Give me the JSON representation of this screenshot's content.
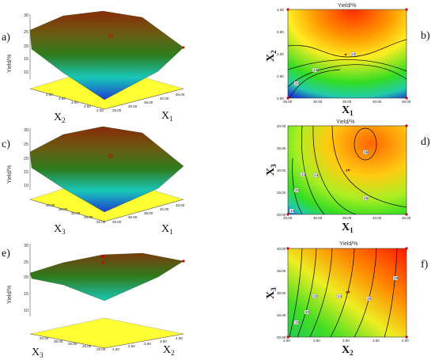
{
  "panels": [
    {
      "label": "a)",
      "kind": "surface",
      "zlabel": "Yield/%",
      "zticks": [
        "30",
        "25",
        "20",
        "15",
        "10"
      ],
      "axis_left": {
        "name": "X",
        "sub": "2",
        "ticks": [
          "4.00",
          "3.50",
          "3.00",
          "2.50",
          "2.00"
        ]
      },
      "axis_right": {
        "name": "X",
        "sub": "1",
        "ticks": [
          "25.00",
          "30.00",
          "35.00",
          "40.00",
          "45.00"
        ]
      }
    },
    {
      "label": "c)",
      "kind": "surface",
      "zlabel": "Yield/%",
      "zticks": [
        "30",
        "25",
        "20",
        "15",
        "10"
      ],
      "axis_left": {
        "name": "X",
        "sub": "3",
        "ticks": [
          "40.00",
          "35.00",
          "30.00",
          "25.00",
          "20.00"
        ]
      },
      "axis_right": {
        "name": "X",
        "sub": "1",
        "ticks": [
          "25.00",
          "30.00",
          "35.00",
          "40.00",
          "45.00"
        ]
      }
    },
    {
      "label": "e)",
      "kind": "surface",
      "zlabel": "Yield/%",
      "zticks": [
        "30",
        "25",
        "20",
        "15",
        "10"
      ],
      "axis_left": {
        "name": "X",
        "sub": "3",
        "ticks": [
          "40.00",
          "35.00",
          "30.00",
          "25.00",
          "20.00"
        ]
      },
      "axis_right": {
        "name": "X",
        "sub": "2",
        "ticks": [
          "2.00",
          "2.50",
          "3.00",
          "3.50",
          "4.00"
        ]
      }
    },
    {
      "label": "b)",
      "kind": "contour",
      "title": "Yield/%",
      "xlabel": {
        "name": "X",
        "sub": "1"
      },
      "ylabel": {
        "name": "X",
        "sub": "2"
      },
      "xticks": [
        "25.00",
        "30.00",
        "35.00",
        "40.00",
        "45.00"
      ],
      "yticks": [
        "2.00",
        "2.50",
        "3.00",
        "3.50",
        "4.00"
      ],
      "contour_labels": [
        "20",
        "22",
        "24"
      ]
    },
    {
      "label": "d)",
      "kind": "contour",
      "title": "Yield/%",
      "xlabel": {
        "name": "X",
        "sub": "1"
      },
      "ylabel": {
        "name": "X",
        "sub": "3"
      },
      "xticks": [
        "25.00",
        "30.00",
        "35.00",
        "40.00",
        "45.00"
      ],
      "yticks": [
        "20.00",
        "25.00",
        "30.00",
        "35.00",
        "40.00"
      ],
      "contour_labels": [
        "18",
        "20",
        "22",
        "24",
        "26",
        "26",
        "5"
      ]
    },
    {
      "label": "f)",
      "kind": "contour",
      "title": "Yield/%",
      "xlabel": {
        "name": "X",
        "sub": "2"
      },
      "ylabel": {
        "name": "X",
        "sub": "3"
      },
      "xticks": [
        "2.00",
        "2.50",
        "3.00",
        "3.50",
        "4.00"
      ],
      "yticks": [
        "20.00",
        "25.00",
        "30.00",
        "35.00",
        "40.00"
      ],
      "contour_labels": [
        "18",
        "20",
        "22",
        "24",
        "26",
        "28",
        "5"
      ]
    }
  ],
  "chart_data": [
    {
      "type": "surface",
      "title": "",
      "zlabel": "Yield/%",
      "x_axis": "X1",
      "y_axis": "X2",
      "x_range": [
        25,
        45
      ],
      "y_range": [
        2,
        4
      ],
      "z_range": [
        10,
        30
      ]
    },
    {
      "type": "surface",
      "title": "",
      "zlabel": "Yield/%",
      "x_axis": "X1",
      "y_axis": "X3",
      "x_range": [
        25,
        45
      ],
      "y_range": [
        20,
        40
      ],
      "z_range": [
        10,
        30
      ]
    },
    {
      "type": "surface",
      "title": "",
      "zlabel": "Yield/%",
      "x_axis": "X2",
      "y_axis": "X3",
      "x_range": [
        2,
        4
      ],
      "y_range": [
        20,
        40
      ],
      "z_range": [
        10,
        30
      ]
    },
    {
      "type": "heatmap",
      "title": "Yield/%",
      "x_axis": "X1",
      "y_axis": "X2",
      "x_range": [
        25,
        45
      ],
      "y_range": [
        2,
        4
      ],
      "contour_levels": [
        20,
        22,
        24
      ]
    },
    {
      "type": "heatmap",
      "title": "Yield/%",
      "x_axis": "X1",
      "y_axis": "X3",
      "x_range": [
        25,
        45
      ],
      "y_range": [
        20,
        40
      ],
      "contour_levels": [
        18,
        20,
        22,
        24,
        26
      ]
    },
    {
      "type": "heatmap",
      "title": "Yield/%",
      "x_axis": "X2",
      "y_axis": "X3",
      "x_range": [
        2,
        4
      ],
      "y_range": [
        20,
        40
      ],
      "contour_levels": [
        18,
        20,
        22,
        24,
        26,
        28
      ]
    }
  ],
  "colors": {
    "floor": "#ffff33",
    "surface_top": "#8a2a0a",
    "surface_mid": "#2e7d1f",
    "surface_low": "#19d3c8",
    "surface_min": "#1a3fcf",
    "heat_low": "#1a3fcf",
    "heat_mid": "#33dd22",
    "heat_high": "#ff2200",
    "design_point": "#cc0000"
  }
}
